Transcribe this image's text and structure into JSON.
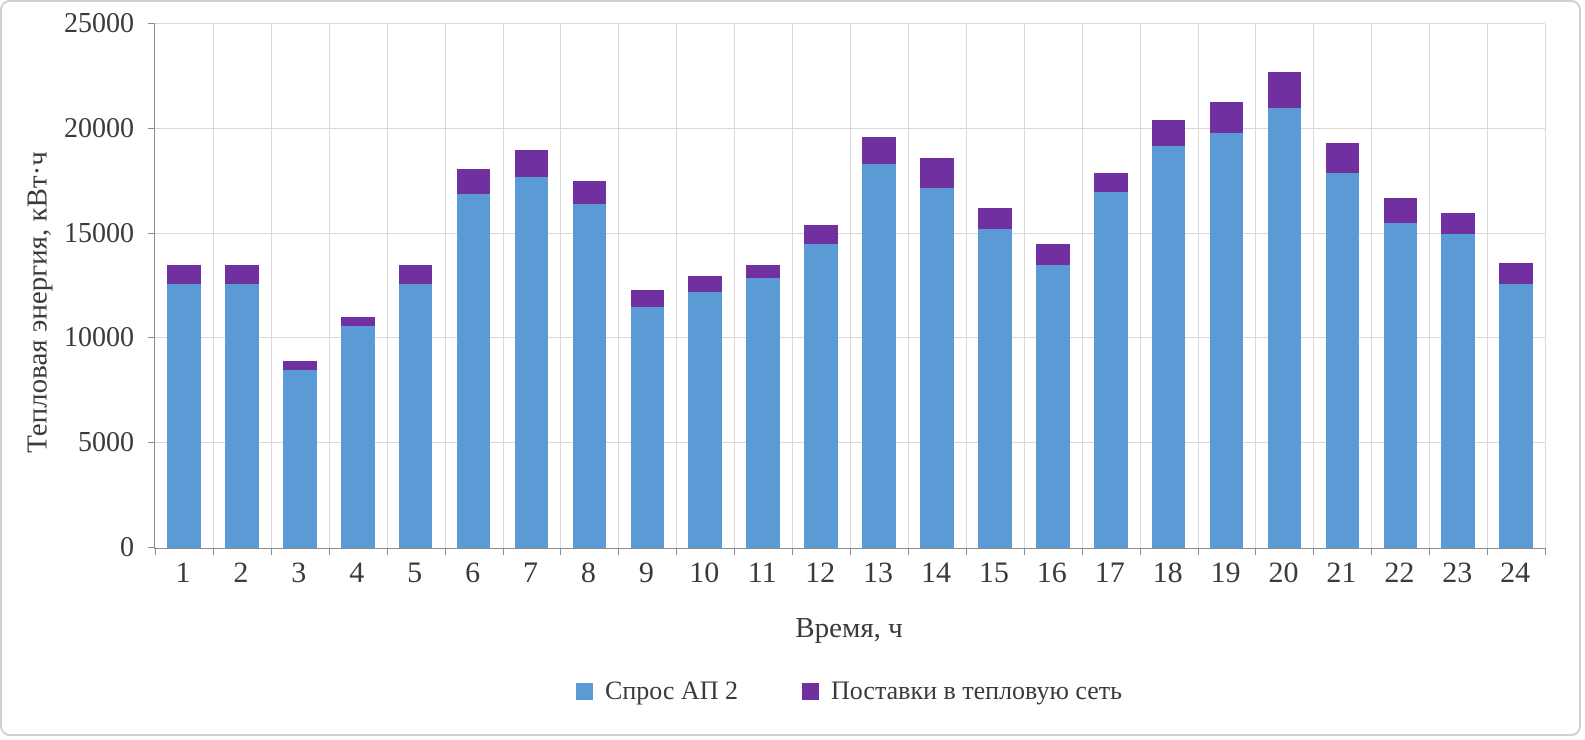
{
  "chart_data": {
    "type": "bar",
    "stacked": true,
    "title": "",
    "xlabel": "Время, ч",
    "ylabel": "Тепловая энергия, кВт·ч",
    "ylim": [
      0,
      25000
    ],
    "yticks": [
      0,
      5000,
      10000,
      15000,
      20000,
      25000
    ],
    "grid": "horizontal-and-vertical",
    "legend_position": "bottom",
    "categories": [
      "1",
      "2",
      "3",
      "4",
      "5",
      "6",
      "7",
      "8",
      "9",
      "10",
      "11",
      "12",
      "13",
      "14",
      "15",
      "16",
      "17",
      "18",
      "19",
      "20",
      "21",
      "22",
      "23",
      "24"
    ],
    "series": [
      {
        "name": "Спрос АП 2",
        "color": "#5B9BD5",
        "values": [
          12600,
          12600,
          8500,
          10600,
          12600,
          16900,
          17700,
          16400,
          11500,
          12200,
          12900,
          14500,
          18300,
          17200,
          15200,
          13500,
          17000,
          19200,
          19800,
          21000,
          17900,
          15500,
          15000,
          12600
        ]
      },
      {
        "name": "Поставки в тепловую сеть",
        "color": "#7030A0",
        "values": [
          900,
          900,
          400,
          400,
          900,
          1200,
          1300,
          1100,
          800,
          800,
          600,
          900,
          1300,
          1400,
          1000,
          1000,
          900,
          1200,
          1500,
          1700,
          1400,
          1200,
          1000,
          1000
        ]
      }
    ]
  }
}
